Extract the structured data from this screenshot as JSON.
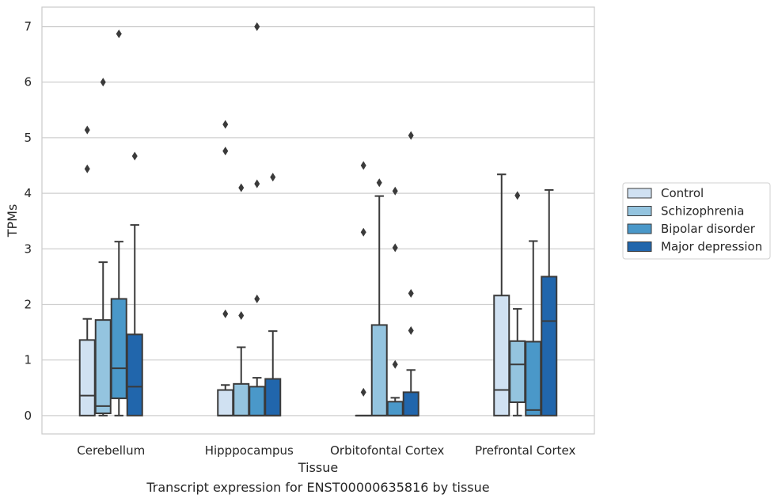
{
  "chart_data": {
    "type": "box",
    "caption": "Transcript expression for ENST00000635816 by tissue",
    "xlabel": "Tissue",
    "ylabel": "TPMs",
    "ylim": [
      -0.33,
      7.35
    ],
    "yticks": [
      0,
      1,
      2,
      3,
      4,
      5,
      6,
      7
    ],
    "categories": [
      "Cerebellum",
      "Hipppocampus",
      "Orbitofontal Cortex",
      "Prefrontal Cortex"
    ],
    "grid": "horizontal",
    "legend_position": "right",
    "series": [
      {
        "name": "Control",
        "color": "#d0e1f2",
        "boxes": [
          {
            "min": 0,
            "q1": 0,
            "median": 0.36,
            "q3": 1.36,
            "max": 1.74,
            "outliers": [
              4.44,
              5.14
            ]
          },
          {
            "min": 0,
            "q1": 0,
            "median": 0,
            "q3": 0.46,
            "max": 0.55,
            "outliers": [
              1.83,
              4.76,
              5.24
            ]
          },
          {
            "min": 0,
            "q1": 0,
            "median": 0,
            "q3": 0,
            "max": 0,
            "outliers": [
              0.42,
              3.3,
              4.5
            ]
          },
          {
            "min": 0,
            "q1": 0,
            "median": 0.46,
            "q3": 2.16,
            "max": 4.34,
            "outliers": []
          }
        ]
      },
      {
        "name": "Schizophrenia",
        "color": "#94c4df",
        "boxes": [
          {
            "min": 0,
            "q1": 0.04,
            "median": 0.17,
            "q3": 1.72,
            "max": 2.76,
            "outliers": [
              6.0
            ]
          },
          {
            "min": 0,
            "q1": 0,
            "median": 0,
            "q3": 0.57,
            "max": 1.23,
            "outliers": [
              1.8,
              4.1
            ]
          },
          {
            "min": 0,
            "q1": 0,
            "median": 0,
            "q3": 1.63,
            "max": 3.95,
            "outliers": [
              4.19
            ]
          },
          {
            "min": 0,
            "q1": 0.24,
            "median": 0.92,
            "q3": 1.34,
            "max": 1.92,
            "outliers": [
              3.96
            ]
          }
        ]
      },
      {
        "name": "Bipolar disorder",
        "color": "#4a98c9",
        "boxes": [
          {
            "min": 0,
            "q1": 0.31,
            "median": 0.85,
            "q3": 2.1,
            "max": 3.13,
            "outliers": [
              6.87
            ]
          },
          {
            "min": 0,
            "q1": 0,
            "median": 0,
            "q3": 0.52,
            "max": 0.68,
            "outliers": [
              2.1,
              4.17,
              7.0
            ]
          },
          {
            "min": 0,
            "q1": 0,
            "median": 0,
            "q3": 0.25,
            "max": 0.32,
            "outliers": [
              0.92,
              3.02,
              4.04
            ]
          },
          {
            "min": 0,
            "q1": 0,
            "median": 0.1,
            "q3": 1.33,
            "max": 3.14,
            "outliers": []
          }
        ]
      },
      {
        "name": "Major depression",
        "color": "#2166ac",
        "boxes": [
          {
            "min": 0,
            "q1": 0,
            "median": 0.52,
            "q3": 1.46,
            "max": 3.43,
            "outliers": [
              4.67
            ]
          },
          {
            "min": 0,
            "q1": 0,
            "median": 0,
            "q3": 0.66,
            "max": 1.52,
            "outliers": [
              4.29
            ]
          },
          {
            "min": 0,
            "q1": 0,
            "median": 0,
            "q3": 0.42,
            "max": 0.82,
            "outliers": [
              1.53,
              2.2,
              5.04
            ]
          },
          {
            "min": 0,
            "q1": 0,
            "median": 1.7,
            "q3": 2.5,
            "max": 4.06,
            "outliers": []
          }
        ]
      }
    ]
  }
}
